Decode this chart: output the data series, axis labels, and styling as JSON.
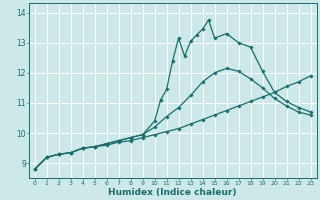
{
  "xlabel": "Humidex (Indice chaleur)",
  "bg_color": "#cce8e8",
  "grid_color": "#ffffff",
  "line_color": "#1a6e6a",
  "xlim": [
    -0.5,
    23.5
  ],
  "ylim": [
    8.5,
    14.3
  ],
  "xticks": [
    0,
    1,
    2,
    3,
    4,
    5,
    6,
    7,
    8,
    9,
    10,
    11,
    12,
    13,
    14,
    15,
    16,
    17,
    18,
    19,
    20,
    21,
    22,
    23
  ],
  "yticks": [
    9,
    10,
    11,
    12,
    13,
    14
  ],
  "line1_x": [
    0,
    1,
    2,
    3,
    4,
    5,
    6,
    7,
    8,
    9,
    10,
    11,
    12,
    13,
    14,
    15,
    16,
    17,
    18,
    19,
    20,
    21,
    22,
    23
  ],
  "line1_y": [
    8.8,
    9.2,
    9.3,
    9.35,
    9.5,
    9.55,
    9.6,
    9.7,
    9.75,
    9.85,
    9.95,
    10.05,
    10.15,
    10.3,
    10.45,
    10.6,
    10.75,
    10.9,
    11.05,
    11.2,
    11.35,
    11.55,
    11.7,
    11.9
  ],
  "line2_x": [
    0,
    1,
    2,
    3,
    4,
    5,
    6,
    7,
    8,
    9,
    10,
    11,
    12,
    13,
    14,
    15,
    16,
    17,
    18,
    19,
    20,
    21,
    22,
    23
  ],
  "line2_y": [
    8.8,
    9.2,
    9.3,
    9.35,
    9.5,
    9.55,
    9.65,
    9.75,
    9.85,
    9.95,
    10.2,
    10.55,
    10.85,
    11.25,
    11.7,
    12.0,
    12.15,
    12.05,
    11.8,
    11.5,
    11.15,
    10.9,
    10.7,
    10.6
  ],
  "line3_x": [
    0,
    1,
    2,
    3,
    4,
    5,
    6,
    7,
    8,
    9,
    10,
    10.5,
    11,
    11.5,
    12,
    12.5,
    13,
    13.5,
    14,
    14.5,
    15,
    16,
    17,
    18,
    19,
    20,
    21,
    22,
    23
  ],
  "line3_y": [
    8.8,
    9.2,
    9.3,
    9.35,
    9.5,
    9.55,
    9.65,
    9.75,
    9.85,
    9.95,
    10.4,
    11.1,
    11.45,
    12.4,
    13.15,
    12.55,
    13.05,
    13.25,
    13.45,
    13.75,
    13.15,
    13.3,
    13.0,
    12.85,
    12.05,
    11.35,
    11.05,
    10.85,
    10.7
  ],
  "marker": "D",
  "markersize": 1.8,
  "linewidth": 0.9
}
